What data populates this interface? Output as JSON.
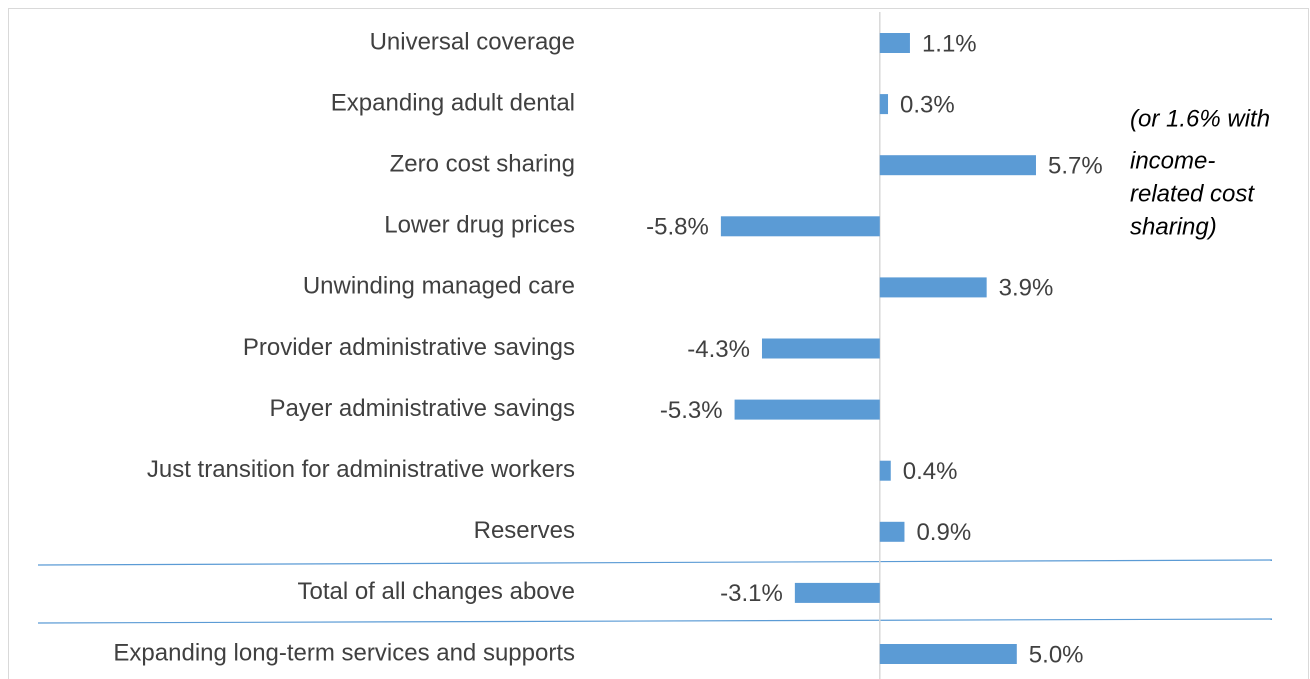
{
  "chart_data": {
    "type": "barh",
    "categories": [
      "Universal coverage",
      "Expanding adult dental",
      "Zero cost sharing",
      "Lower drug prices",
      "Unwinding managed care",
      "Provider administrative savings",
      "Payer administrative savings",
      "Just transition for administrative workers",
      "Reserves",
      "Total of all changes above",
      "Expanding long-term services and supports"
    ],
    "values": [
      1.1,
      0.3,
      5.7,
      -5.8,
      3.9,
      -4.3,
      -5.3,
      0.4,
      0.9,
      -3.1,
      5.0
    ],
    "value_labels": [
      "1.1%",
      "0.3%",
      "5.7%",
      "-5.8%",
      "3.9%",
      "-4.3%",
      "-5.3%",
      "0.4%",
      "0.9%",
      "-3.1%",
      "5.0%"
    ],
    "color": "#5b9bd5",
    "xlim": [
      -7,
      13
    ],
    "annotation": [
      "(or 1.6% with",
      "income-",
      "related cost",
      "sharing)"
    ]
  }
}
